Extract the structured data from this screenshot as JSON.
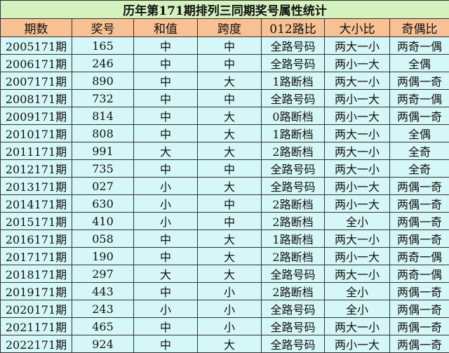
{
  "title": "历年第171期排列三同期奖号属性统计",
  "colors": {
    "title_bg": "#d4f2bd",
    "header_bg": "#f7c194",
    "row_bg": "#d6f7f7"
  },
  "headers": [
    "期数",
    "奖号",
    "和值",
    "跨度",
    "012路比",
    "大小比",
    "奇偶比"
  ],
  "rows": [
    [
      "2005171期",
      "165",
      "中",
      "中",
      "全路号码",
      "两大一小",
      "两奇一偶"
    ],
    [
      "2006171期",
      "246",
      "中",
      "中",
      "全路号码",
      "两小一大",
      "全偶"
    ],
    [
      "2007171期",
      "890",
      "中",
      "大",
      "1路断档",
      "两大一小",
      "两偶一奇"
    ],
    [
      "2008171期",
      "732",
      "中",
      "中",
      "全路号码",
      "两小一大",
      "两奇一偶"
    ],
    [
      "2009171期",
      "814",
      "中",
      "大",
      "0路断档",
      "两小一大",
      "两偶一奇"
    ],
    [
      "2010171期",
      "808",
      "中",
      "大",
      "1路断档",
      "两大一小",
      "全偶"
    ],
    [
      "2011171期",
      "991",
      "大",
      "大",
      "2路断档",
      "两大一小",
      "全奇"
    ],
    [
      "2012171期",
      "735",
      "中",
      "中",
      "全路号码",
      "两大一小",
      "全奇"
    ],
    [
      "2013171期",
      "027",
      "小",
      "大",
      "全路号码",
      "两小一大",
      "两偶一奇"
    ],
    [
      "2014171期",
      "630",
      "小",
      "中",
      "2路断档",
      "两小一大",
      "两偶一奇"
    ],
    [
      "2015171期",
      "410",
      "小",
      "中",
      "2路断档",
      "全小",
      "两偶一奇"
    ],
    [
      "2016171期",
      "058",
      "中",
      "大",
      "1路断档",
      "两大一小",
      "两偶一奇"
    ],
    [
      "2017171期",
      "190",
      "中",
      "大",
      "2路断档",
      "两小一大",
      "两奇一偶"
    ],
    [
      "2018171期",
      "297",
      "大",
      "大",
      "全路号码",
      "两大一小",
      "两奇一偶"
    ],
    [
      "2019171期",
      "443",
      "中",
      "小",
      "2路断档",
      "全小",
      "两偶一奇"
    ],
    [
      "2020171期",
      "243",
      "小",
      "小",
      "全路号码",
      "全小",
      "两偶一奇"
    ],
    [
      "2021171期",
      "465",
      "中",
      "小",
      "全路号码",
      "两大一小",
      "两偶一奇"
    ],
    [
      "2022171期",
      "924",
      "中",
      "大",
      "全路号码",
      "两小一大",
      "两偶一奇"
    ]
  ]
}
